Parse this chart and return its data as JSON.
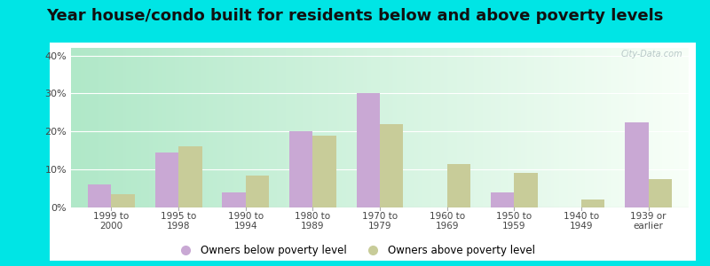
{
  "title": "Year house/condo built for residents below and above poverty levels",
  "categories": [
    "1999 to\n2000",
    "1995 to\n1998",
    "1990 to\n1994",
    "1980 to\n1989",
    "1970 to\n1979",
    "1960 to\n1969",
    "1950 to\n1959",
    "1940 to\n1949",
    "1939 or\nearlier"
  ],
  "below_poverty": [
    6,
    14.5,
    4,
    20,
    30,
    0,
    4,
    0,
    22.5
  ],
  "above_poverty": [
    3.5,
    16,
    8.5,
    19,
    22,
    11.5,
    9,
    2,
    7.5
  ],
  "below_color": "#c9a8d4",
  "above_color": "#c8cc99",
  "bar_width": 0.35,
  "ylim": [
    0,
    42
  ],
  "yticks": [
    0,
    10,
    20,
    30,
    40
  ],
  "ytick_labels": [
    "0%",
    "10%",
    "20%",
    "30%",
    "40%"
  ],
  "bg_left": "#b0e8c8",
  "bg_right": "#f0f8f0",
  "outer_bg": "#00e5e5",
  "inner_bg": "#ffffff",
  "title_fontsize": 13,
  "legend_below_label": "Owners below poverty level",
  "legend_above_label": "Owners above poverty level",
  "watermark": "City-Data.com"
}
